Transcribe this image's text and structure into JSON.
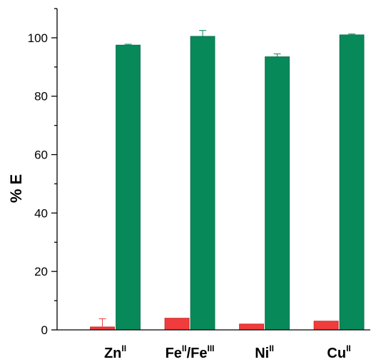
{
  "chart_data": {
    "type": "bar",
    "ylabel": "% E",
    "ylim": [
      0,
      110
    ],
    "yticks": [
      0,
      20,
      40,
      60,
      80,
      100
    ],
    "grid": false,
    "categories": [
      {
        "base": "Zn",
        "sup": "II"
      },
      {
        "base": "Fe",
        "sup": "II",
        "sep": "/Fe",
        "sup2": "III"
      },
      {
        "base": "Ni",
        "sup": "II"
      },
      {
        "base": "Cu",
        "sup": "II"
      }
    ],
    "series": [
      {
        "color": "#f03c3c",
        "values": [
          1.0,
          4.0,
          2.0,
          3.0
        ],
        "errors": [
          2.8,
          0.0,
          0.0,
          0.0
        ]
      },
      {
        "color": "#07895a",
        "values": [
          97.5,
          100.5,
          93.5,
          101.0
        ],
        "errors": [
          0.3,
          2.0,
          1.0,
          0.3
        ]
      }
    ]
  }
}
